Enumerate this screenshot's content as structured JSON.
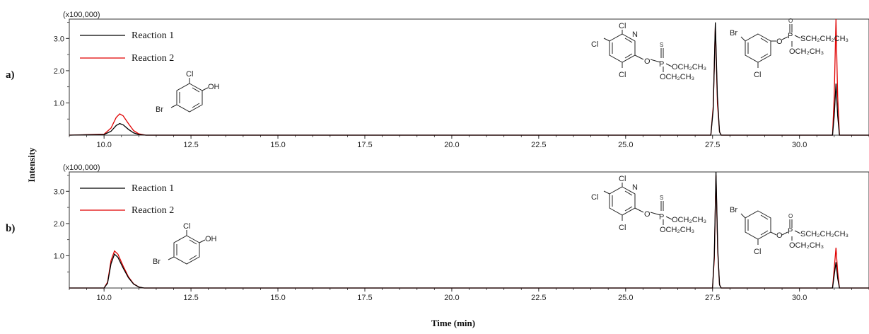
{
  "chart_data": [
    {
      "type": "line",
      "panel_label": "a)",
      "multiplier_label": "(x100,000)",
      "xlim": [
        9.0,
        32.0
      ],
      "ylim": [
        0,
        3.6
      ],
      "x_ticks": [
        "10.0",
        "12.5",
        "15.0",
        "17.5",
        "20.0",
        "22.5",
        "25.0",
        "27.5",
        "30.0"
      ],
      "y_ticks": [
        "1.0",
        "2.0",
        "3.0"
      ],
      "legend": {
        "placement": "top-left"
      },
      "series": [
        {
          "name": "Reaction 1",
          "color": "#000000",
          "points": [
            [
              9.0,
              0.0
            ],
            [
              10.0,
              0.02
            ],
            [
              10.2,
              0.12
            ],
            [
              10.35,
              0.3
            ],
            [
              10.45,
              0.36
            ],
            [
              10.55,
              0.32
            ],
            [
              10.7,
              0.18
            ],
            [
              10.85,
              0.07
            ],
            [
              11.0,
              0.02
            ],
            [
              11.2,
              0.0
            ],
            [
              27.45,
              0.0
            ],
            [
              27.52,
              0.8
            ],
            [
              27.58,
              3.5
            ],
            [
              27.64,
              1.2
            ],
            [
              27.7,
              0.1
            ],
            [
              27.75,
              0.0
            ],
            [
              30.95,
              0.0
            ],
            [
              31.0,
              0.6
            ],
            [
              31.05,
              1.6
            ],
            [
              31.1,
              0.6
            ],
            [
              31.15,
              0.0
            ],
            [
              32.0,
              0.0
            ]
          ]
        },
        {
          "name": "Reaction 2",
          "color": "#e00000",
          "points": [
            [
              9.0,
              0.0
            ],
            [
              10.0,
              0.03
            ],
            [
              10.2,
              0.22
            ],
            [
              10.35,
              0.55
            ],
            [
              10.45,
              0.66
            ],
            [
              10.55,
              0.6
            ],
            [
              10.7,
              0.36
            ],
            [
              10.85,
              0.14
            ],
            [
              11.0,
              0.04
            ],
            [
              11.2,
              0.0
            ],
            [
              27.45,
              0.0
            ],
            [
              27.52,
              0.9
            ],
            [
              27.58,
              3.4
            ],
            [
              27.64,
              1.0
            ],
            [
              27.7,
              0.1
            ],
            [
              27.75,
              0.0
            ],
            [
              30.95,
              0.0
            ],
            [
              31.0,
              1.2
            ],
            [
              31.05,
              3.6
            ],
            [
              31.1,
              1.2
            ],
            [
              31.15,
              0.0
            ],
            [
              32.0,
              0.0
            ]
          ]
        }
      ]
    },
    {
      "type": "line",
      "panel_label": "b)",
      "multiplier_label": "(x100,000)",
      "xlim": [
        9.0,
        32.0
      ],
      "ylim": [
        0,
        3.6
      ],
      "x_ticks": [
        "10.0",
        "12.5",
        "15.0",
        "17.5",
        "20.0",
        "22.5",
        "25.0",
        "27.5",
        "30.0"
      ],
      "y_ticks": [
        "1.0",
        "2.0",
        "3.0"
      ],
      "legend": {
        "placement": "top-left"
      },
      "series": [
        {
          "name": "Reaction 1",
          "color": "#000000",
          "points": [
            [
              9.0,
              0.0
            ],
            [
              10.0,
              0.0
            ],
            [
              10.1,
              0.15
            ],
            [
              10.2,
              0.75
            ],
            [
              10.3,
              1.05
            ],
            [
              10.4,
              0.95
            ],
            [
              10.55,
              0.62
            ],
            [
              10.7,
              0.32
            ],
            [
              10.85,
              0.12
            ],
            [
              11.0,
              0.03
            ],
            [
              11.15,
              0.0
            ],
            [
              27.5,
              0.0
            ],
            [
              27.55,
              1.0
            ],
            [
              27.6,
              3.6
            ],
            [
              27.65,
              1.2
            ],
            [
              27.7,
              0.1
            ],
            [
              27.75,
              0.0
            ],
            [
              30.95,
              0.0
            ],
            [
              31.0,
              0.4
            ],
            [
              31.05,
              0.8
            ],
            [
              31.1,
              0.3
            ],
            [
              31.15,
              0.0
            ],
            [
              32.0,
              0.0
            ]
          ]
        },
        {
          "name": "Reaction 2",
          "color": "#e00000",
          "points": [
            [
              9.0,
              0.0
            ],
            [
              10.0,
              0.0
            ],
            [
              10.1,
              0.18
            ],
            [
              10.2,
              0.85
            ],
            [
              10.3,
              1.15
            ],
            [
              10.4,
              1.05
            ],
            [
              10.55,
              0.68
            ],
            [
              10.7,
              0.35
            ],
            [
              10.85,
              0.13
            ],
            [
              11.0,
              0.03
            ],
            [
              11.15,
              0.0
            ],
            [
              27.5,
              0.0
            ],
            [
              27.55,
              0.9
            ],
            [
              27.6,
              3.5
            ],
            [
              27.65,
              1.1
            ],
            [
              27.7,
              0.1
            ],
            [
              27.75,
              0.0
            ],
            [
              30.95,
              0.0
            ],
            [
              31.0,
              0.6
            ],
            [
              31.05,
              1.25
            ],
            [
              31.1,
              0.5
            ],
            [
              31.15,
              0.0
            ],
            [
              32.0,
              0.0
            ]
          ]
        }
      ]
    }
  ],
  "shared": {
    "y_axis_title": "Intensity",
    "x_axis_title": "Time (min)"
  },
  "structures": {
    "bromochlorophenol": {
      "atoms": [
        "Cl",
        "OH",
        "Br"
      ]
    },
    "chlorpyrifos": {
      "atoms": [
        "Cl",
        "Cl",
        "N",
        "Cl",
        "O",
        "P",
        "S",
        "OCH₂CH₃",
        "OCH₂CH₃"
      ]
    },
    "profenofos": {
      "atoms": [
        "Br",
        "Cl",
        "O",
        "P",
        "O",
        "SCH₂CH₂CH₃",
        "OCH₂CH₃"
      ]
    }
  }
}
